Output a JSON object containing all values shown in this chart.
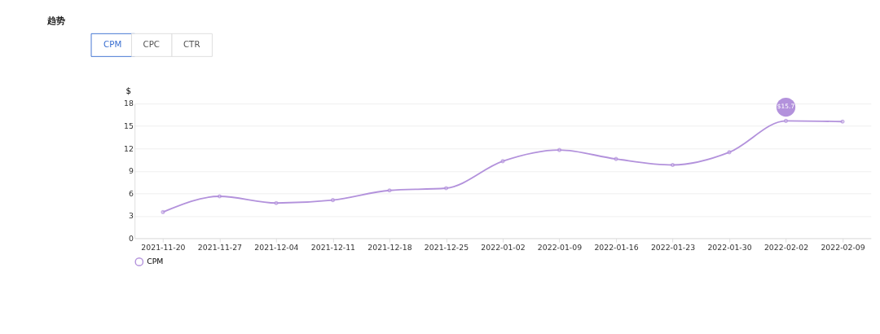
{
  "chart_data": {
    "type": "line",
    "title": "趋势",
    "categories": [
      "2021-11-20",
      "2021-11-27",
      "2021-12-04",
      "2021-12-11",
      "2021-12-18",
      "2021-12-25",
      "2022-01-02",
      "2022-01-09",
      "2022-01-16",
      "2022-01-23",
      "2022-01-30",
      "2022-02-02",
      "2022-02-09"
    ],
    "series": [
      {
        "name": "CPM",
        "color": "#b392dc",
        "values": [
          3.5,
          5.6,
          4.7,
          5.1,
          6.4,
          6.7,
          10.3,
          11.8,
          10.6,
          9.8,
          11.5,
          15.7,
          15.6
        ]
      }
    ],
    "ylabel": "$",
    "ylim": [
      0,
      18
    ],
    "yticks": [
      0,
      3,
      6,
      9,
      12,
      15,
      18
    ],
    "grid": "y",
    "legend": "bottom",
    "marker": "circle",
    "line_style": "solid",
    "annotations": [
      {
        "text": "$15.7",
        "x": "2022-02-02",
        "y": 15.7
      },
      "CPM",
      "CPC",
      "CTR"
    ]
  }
}
